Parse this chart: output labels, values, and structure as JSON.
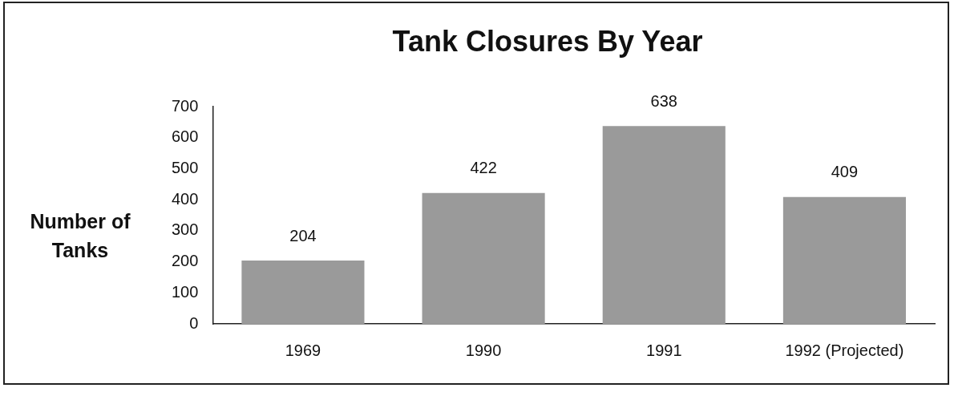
{
  "chart_data": {
    "type": "bar",
    "title": "Tank Closures By Year",
    "ylabel": "Number of Tanks",
    "categories": [
      "1969",
      "1990",
      "1991",
      "1992 (Projected)"
    ],
    "values": [
      204,
      422,
      638,
      409
    ],
    "color": "#9a9a9a",
    "ylim": [
      0,
      700
    ],
    "yticks": [
      0,
      100,
      200,
      300,
      400,
      500,
      600,
      700
    ],
    "grid": false,
    "legend": false,
    "data_labels": true
  }
}
